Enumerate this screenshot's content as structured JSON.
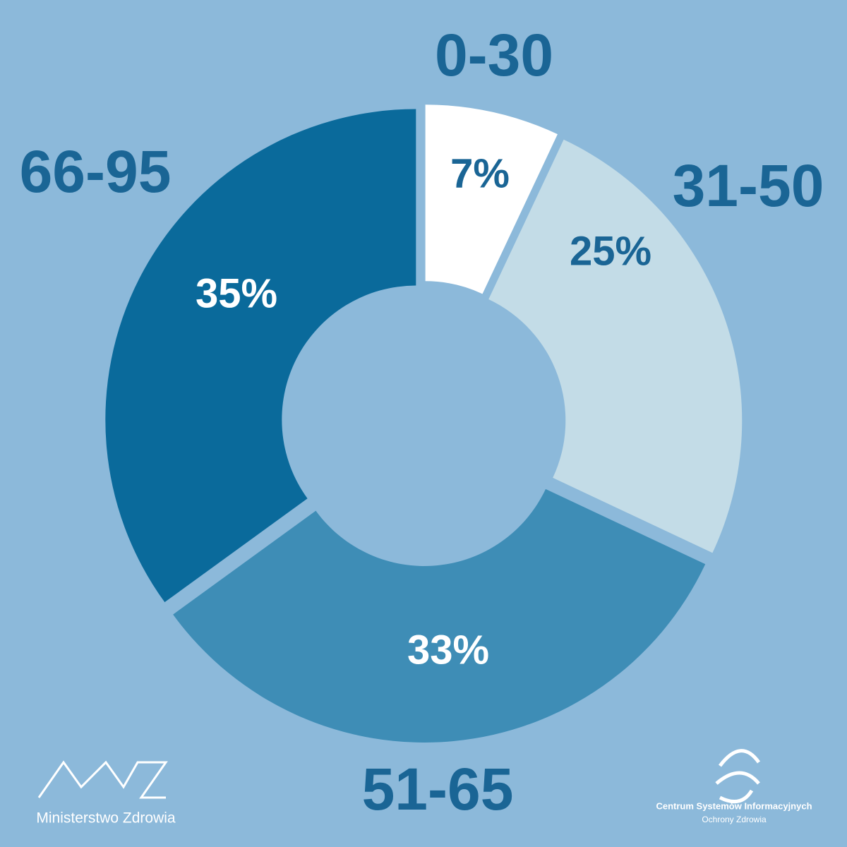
{
  "chart_data": {
    "type": "donut",
    "categories": [
      "0-30",
      "31-50",
      "51-65",
      "66-95"
    ],
    "values": [
      7,
      25,
      33,
      35
    ],
    "value_labels": [
      "7%",
      "25%",
      "33%",
      "35%"
    ],
    "colors": [
      "#ffffff",
      "#c3dce7",
      "#3e8db6",
      "#0a6a9b"
    ]
  },
  "footer": {
    "left_logo": "Ministerstwo Zdrowia",
    "right_logo_line1": "Centrum Systemów Informacyjnych",
    "right_logo_line2": "Ochrony Zdrowia"
  }
}
